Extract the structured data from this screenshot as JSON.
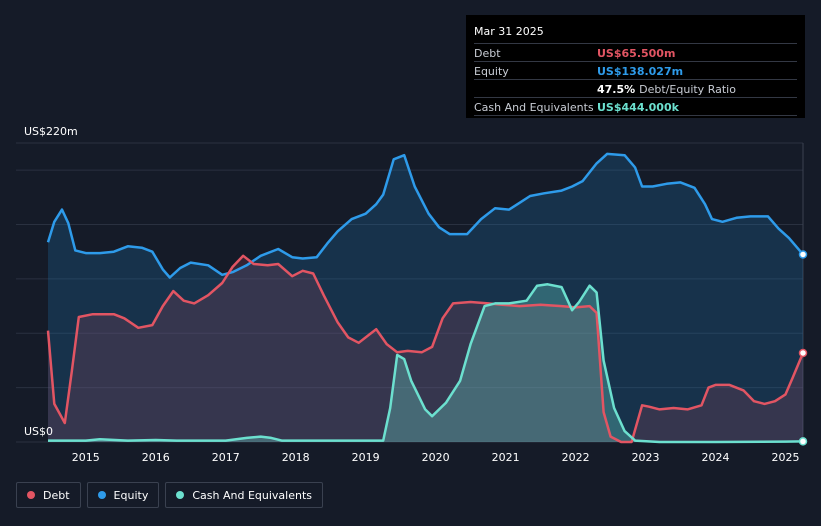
{
  "tooltip": {
    "date": "Mar 31 2025",
    "rows": [
      {
        "label": "Debt",
        "value": "US$65.500m",
        "color": "#e25563",
        "suffix": ""
      },
      {
        "label": "Equity",
        "value": "US$138.027m",
        "color": "#2e9bea",
        "suffix": ""
      },
      {
        "label": "",
        "value": "47.5%",
        "color": "#ffffff",
        "suffix": "Debt/Equity Ratio"
      },
      {
        "label": "Cash And Equivalents",
        "value": "US$444.000k",
        "color": "#6ce0cf",
        "suffix": ""
      }
    ]
  },
  "legend": [
    {
      "label": "Debt",
      "color": "#e25563"
    },
    {
      "label": "Equity",
      "color": "#2e9bea"
    },
    {
      "label": "Cash And Equivalents",
      "color": "#6ce0cf"
    }
  ],
  "chart_data": {
    "type": "area",
    "y_top_label": "US$220m",
    "y_bottom_label": "US$0",
    "ylim": [
      0,
      220
    ],
    "xlim": [
      2014.46,
      2025.25
    ],
    "x_tick_labels": [
      "2015",
      "2016",
      "2017",
      "2018",
      "2019",
      "2020",
      "2021",
      "2022",
      "2023",
      "2024",
      "2025"
    ],
    "x_tick_values": [
      2015,
      2016,
      2017,
      2018,
      2019,
      2020,
      2021,
      2022,
      2023,
      2024,
      2025
    ],
    "grid": true,
    "legend_position": "bottom-left",
    "series": [
      {
        "name": "Equity",
        "color": "#2e9bea",
        "points": [
          [
            2014.46,
            147
          ],
          [
            2014.55,
            162
          ],
          [
            2014.66,
            171
          ],
          [
            2014.75,
            161
          ],
          [
            2014.85,
            141
          ],
          [
            2015.0,
            139
          ],
          [
            2015.2,
            139
          ],
          [
            2015.4,
            140
          ],
          [
            2015.6,
            144
          ],
          [
            2015.8,
            143
          ],
          [
            2015.95,
            140
          ],
          [
            2016.1,
            127
          ],
          [
            2016.2,
            121
          ],
          [
            2016.35,
            128
          ],
          [
            2016.5,
            132
          ],
          [
            2016.75,
            130
          ],
          [
            2016.95,
            123
          ],
          [
            2017.1,
            125
          ],
          [
            2017.3,
            130
          ],
          [
            2017.5,
            137
          ],
          [
            2017.75,
            142
          ],
          [
            2017.95,
            136
          ],
          [
            2018.1,
            135
          ],
          [
            2018.3,
            136
          ],
          [
            2018.45,
            146
          ],
          [
            2018.6,
            155
          ],
          [
            2018.8,
            164
          ],
          [
            2019.0,
            168
          ],
          [
            2019.15,
            175
          ],
          [
            2019.25,
            182
          ],
          [
            2019.4,
            208
          ],
          [
            2019.55,
            211
          ],
          [
            2019.7,
            188
          ],
          [
            2019.9,
            168
          ],
          [
            2020.05,
            158
          ],
          [
            2020.2,
            153
          ],
          [
            2020.45,
            153
          ],
          [
            2020.65,
            164
          ],
          [
            2020.85,
            172
          ],
          [
            2021.05,
            171
          ],
          [
            2021.2,
            176
          ],
          [
            2021.35,
            181
          ],
          [
            2021.55,
            183
          ],
          [
            2021.8,
            185
          ],
          [
            2021.95,
            188
          ],
          [
            2022.1,
            192
          ],
          [
            2022.3,
            205
          ],
          [
            2022.45,
            212
          ],
          [
            2022.7,
            211
          ],
          [
            2022.85,
            202
          ],
          [
            2022.95,
            188
          ],
          [
            2023.1,
            188
          ],
          [
            2023.3,
            190
          ],
          [
            2023.5,
            191
          ],
          [
            2023.7,
            187
          ],
          [
            2023.85,
            175
          ],
          [
            2023.95,
            164
          ],
          [
            2024.1,
            162
          ],
          [
            2024.3,
            165
          ],
          [
            2024.5,
            166
          ],
          [
            2024.75,
            166
          ],
          [
            2024.9,
            157
          ],
          [
            2025.05,
            150
          ],
          [
            2025.25,
            138
          ]
        ]
      },
      {
        "name": "Debt",
        "color": "#e25563",
        "points": [
          [
            2014.46,
            82
          ],
          [
            2014.55,
            28
          ],
          [
            2014.7,
            14
          ],
          [
            2014.8,
            52
          ],
          [
            2014.9,
            92
          ],
          [
            2015.1,
            94
          ],
          [
            2015.4,
            94
          ],
          [
            2015.55,
            91
          ],
          [
            2015.75,
            84
          ],
          [
            2015.95,
            86
          ],
          [
            2016.1,
            100
          ],
          [
            2016.25,
            111
          ],
          [
            2016.4,
            104
          ],
          [
            2016.55,
            102
          ],
          [
            2016.75,
            108
          ],
          [
            2016.95,
            117
          ],
          [
            2017.1,
            129
          ],
          [
            2017.25,
            137
          ],
          [
            2017.4,
            131
          ],
          [
            2017.6,
            130
          ],
          [
            2017.75,
            131
          ],
          [
            2017.95,
            122
          ],
          [
            2018.1,
            126
          ],
          [
            2018.25,
            124
          ],
          [
            2018.4,
            108
          ],
          [
            2018.6,
            88
          ],
          [
            2018.75,
            77
          ],
          [
            2018.9,
            73
          ],
          [
            2019.05,
            79
          ],
          [
            2019.15,
            83
          ],
          [
            2019.3,
            72
          ],
          [
            2019.45,
            66
          ],
          [
            2019.6,
            67
          ],
          [
            2019.8,
            66
          ],
          [
            2019.95,
            70
          ],
          [
            2020.1,
            91
          ],
          [
            2020.25,
            102
          ],
          [
            2020.5,
            103
          ],
          [
            2020.75,
            102
          ],
          [
            2020.95,
            101
          ],
          [
            2021.2,
            100
          ],
          [
            2021.5,
            101
          ],
          [
            2021.8,
            100
          ],
          [
            2022.0,
            99
          ],
          [
            2022.2,
            100
          ],
          [
            2022.3,
            95
          ],
          [
            2022.4,
            22
          ],
          [
            2022.5,
            4
          ],
          [
            2022.65,
            0
          ],
          [
            2022.8,
            0
          ],
          [
            2022.95,
            27
          ],
          [
            2023.05,
            26
          ],
          [
            2023.2,
            24
          ],
          [
            2023.4,
            25
          ],
          [
            2023.6,
            24
          ],
          [
            2023.8,
            27
          ],
          [
            2023.9,
            40
          ],
          [
            2024.0,
            42
          ],
          [
            2024.2,
            42
          ],
          [
            2024.4,
            38
          ],
          [
            2024.55,
            30
          ],
          [
            2024.7,
            28
          ],
          [
            2024.85,
            30
          ],
          [
            2025.0,
            35
          ],
          [
            2025.1,
            47
          ],
          [
            2025.25,
            65.5
          ]
        ]
      },
      {
        "name": "Cash And Equivalents",
        "color": "#6ce0cf",
        "points": [
          [
            2014.46,
            1
          ],
          [
            2015.0,
            1
          ],
          [
            2015.2,
            2
          ],
          [
            2015.6,
            1
          ],
          [
            2016.0,
            1.5
          ],
          [
            2016.3,
            1
          ],
          [
            2016.7,
            1
          ],
          [
            2017.0,
            1
          ],
          [
            2017.3,
            3
          ],
          [
            2017.5,
            4
          ],
          [
            2017.65,
            3
          ],
          [
            2017.8,
            1
          ],
          [
            2018.2,
            1
          ],
          [
            2018.6,
            1
          ],
          [
            2019.0,
            1
          ],
          [
            2019.25,
            1
          ],
          [
            2019.35,
            25
          ],
          [
            2019.45,
            64
          ],
          [
            2019.55,
            61
          ],
          [
            2019.65,
            45
          ],
          [
            2019.85,
            24
          ],
          [
            2019.95,
            19
          ],
          [
            2020.15,
            29
          ],
          [
            2020.35,
            45
          ],
          [
            2020.5,
            72
          ],
          [
            2020.7,
            100
          ],
          [
            2020.85,
            102
          ],
          [
            2021.05,
            102
          ],
          [
            2021.3,
            104
          ],
          [
            2021.45,
            115
          ],
          [
            2021.6,
            116
          ],
          [
            2021.8,
            114
          ],
          [
            2021.95,
            97
          ],
          [
            2022.05,
            103
          ],
          [
            2022.2,
            115
          ],
          [
            2022.3,
            110
          ],
          [
            2022.4,
            60
          ],
          [
            2022.55,
            25
          ],
          [
            2022.7,
            8
          ],
          [
            2022.85,
            1
          ],
          [
            2023.2,
            0
          ],
          [
            2024.0,
            0
          ],
          [
            2025.0,
            0.3
          ],
          [
            2025.25,
            0.44
          ]
        ]
      }
    ]
  }
}
